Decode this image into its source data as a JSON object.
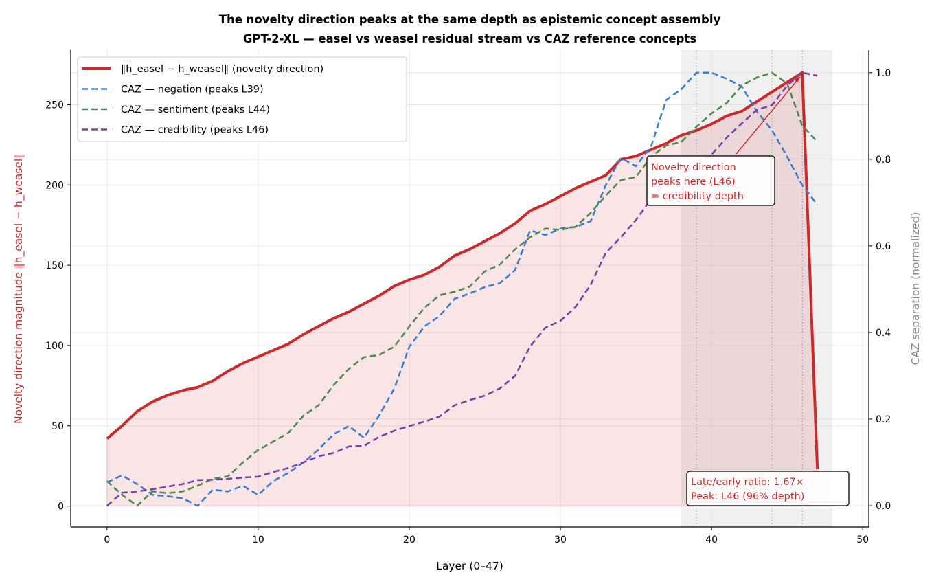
{
  "chart_data": {
    "type": "line",
    "title": "The novelty direction peaks at the same depth as epistemic concept assembly",
    "subtitle": "GPT-2-XL — easel vs weasel residual stream vs CAZ reference concepts",
    "xlabel": "Layer  (0–47)",
    "ylabel": "Novelty direction magnitude  ‖h_easel − h_weasel‖",
    "ylabel_right": "CAZ separation (normalized)",
    "xlim": [
      -2.4,
      50.4
    ],
    "ylim": [
      -13,
      284
    ],
    "ylim_right": [
      -0.049,
      1.052
    ],
    "xticks": [
      0,
      10,
      20,
      30,
      40,
      50
    ],
    "yticks": [
      0,
      50,
      100,
      150,
      200,
      250
    ],
    "yticks_right": [
      "0.0",
      "0.2",
      "0.4",
      "0.6",
      "0.8",
      "1.0"
    ],
    "grid": true,
    "legend_position": "top-left",
    "shaded_region": [
      38,
      48
    ],
    "x": [
      0,
      1,
      2,
      3,
      4,
      5,
      6,
      7,
      8,
      9,
      10,
      11,
      12,
      13,
      14,
      15,
      16,
      17,
      18,
      19,
      20,
      21,
      22,
      23,
      24,
      25,
      26,
      27,
      28,
      29,
      30,
      31,
      32,
      33,
      34,
      35,
      36,
      37,
      38,
      39,
      40,
      41,
      42,
      43,
      44,
      45,
      46,
      47
    ],
    "series": [
      {
        "name": "‖h_easel − h_weasel‖  (novelty direction)",
        "axis": "left",
        "color": "#cc2a2a",
        "style": "solid",
        "values": [
          42,
          50,
          59,
          65,
          69,
          72,
          74,
          78,
          84,
          89,
          93,
          97,
          101,
          107,
          112,
          117,
          121,
          126,
          131,
          137,
          141,
          144,
          149,
          156,
          160,
          165,
          170,
          176,
          184,
          188,
          193,
          198,
          202,
          206,
          216,
          218,
          222,
          226,
          231,
          234,
          238,
          243,
          246,
          252,
          258,
          264,
          270,
          23
        ]
      },
      {
        "name": "CAZ — negation  (peaks L39)",
        "axis": "right",
        "color": "#3b7dd0",
        "style": "dashed",
        "peak": 39,
        "values": [
          0.054,
          0.07,
          0.05,
          0.025,
          0.022,
          0.017,
          0.0,
          0.037,
          0.033,
          0.046,
          0.025,
          0.057,
          0.076,
          0.1,
          0.13,
          0.165,
          0.184,
          0.157,
          0.208,
          0.27,
          0.367,
          0.414,
          0.438,
          0.478,
          0.49,
          0.505,
          0.514,
          0.544,
          0.636,
          0.625,
          0.64,
          0.644,
          0.657,
          0.74,
          0.803,
          0.784,
          0.83,
          0.937,
          0.962,
          1.0,
          1.0,
          0.986,
          0.968,
          0.91,
          0.867,
          0.806,
          0.74,
          0.695
        ]
      },
      {
        "name": "CAZ — sentiment  (peaks L44)",
        "axis": "right",
        "color": "#4e8b4e",
        "style": "dashed",
        "peak": 44,
        "values": [
          0.057,
          0.025,
          0.0,
          0.033,
          0.029,
          0.033,
          0.046,
          0.062,
          0.068,
          0.1,
          0.129,
          0.148,
          0.168,
          0.208,
          0.232,
          0.279,
          0.316,
          0.343,
          0.348,
          0.367,
          0.414,
          0.457,
          0.486,
          0.494,
          0.506,
          0.541,
          0.557,
          0.592,
          0.62,
          0.64,
          0.637,
          0.644,
          0.676,
          0.716,
          0.752,
          0.759,
          0.806,
          0.832,
          0.84,
          0.875,
          0.906,
          0.93,
          0.97,
          0.989,
          1.0,
          0.975,
          0.878,
          0.84
        ]
      },
      {
        "name": "CAZ — credibility  (peaks L46)",
        "axis": "right",
        "color": "#7b3fa8",
        "style": "dashed",
        "peak": 46,
        "values": [
          0.0,
          0.03,
          0.033,
          0.038,
          0.044,
          0.05,
          0.059,
          0.06,
          0.062,
          0.065,
          0.067,
          0.078,
          0.087,
          0.1,
          0.114,
          0.122,
          0.137,
          0.138,
          0.159,
          0.173,
          0.184,
          0.194,
          0.206,
          0.232,
          0.244,
          0.254,
          0.271,
          0.3,
          0.368,
          0.411,
          0.427,
          0.459,
          0.51,
          0.584,
          0.62,
          0.66,
          0.708,
          0.75,
          0.768,
          0.787,
          0.811,
          0.85,
          0.883,
          0.914,
          0.925,
          0.97,
          1.0,
          0.993
        ]
      }
    ],
    "annotations": [
      {
        "lines": [
          "Novelty direction",
          "peaks here (L46)",
          "= credibility depth"
        ],
        "color": "#cc2a2a",
        "arrow_to": [
          46,
          270
        ]
      },
      {
        "lines": [
          "Late/early ratio: 1.67×",
          "Peak: L46 (96% depth)"
        ],
        "color": "#cc2a2a"
      }
    ]
  }
}
